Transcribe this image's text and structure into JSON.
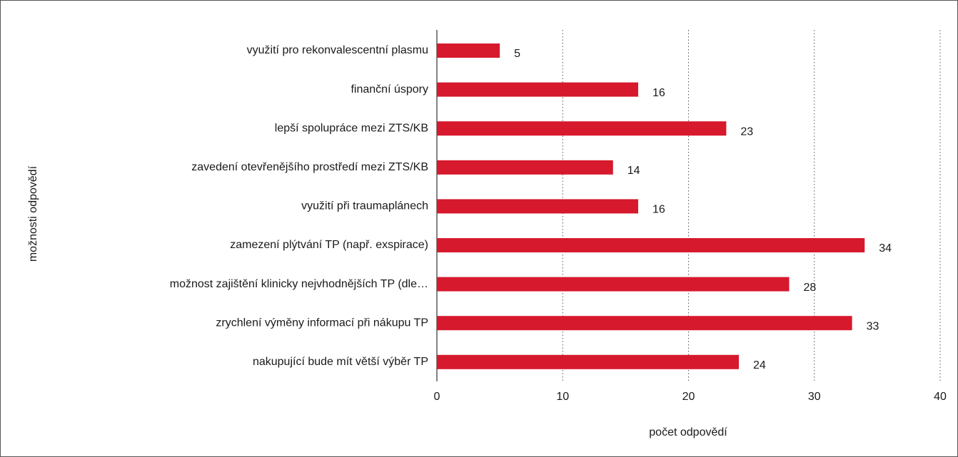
{
  "chart_data": {
    "type": "bar",
    "orientation": "horizontal",
    "categories": [
      "využití pro rekonvalescentní plasmu",
      "finanční úspory",
      "lepší spolupráce mezi ZTS/KB",
      "zavedení otevřenějšího prostředí mezi ZTS/KB",
      "využití při traumaplánech",
      "zamezení plýtvání TP (např. exspirace)",
      "možnost zajištění klinicky nejvhodnějších TP (dle…",
      "zrychlení výměny informací při nákupu TP",
      "nakupující bude mít větší výběr TP"
    ],
    "values": [
      5,
      16,
      23,
      14,
      16,
      34,
      28,
      33,
      24
    ],
    "color": "#d7192d",
    "xlim": [
      0,
      40
    ],
    "xticks": [
      0,
      10,
      20,
      30,
      40
    ],
    "grid": true,
    "xlabel": "počet odpovědí",
    "ylabel": "možnosti odpovědí"
  }
}
